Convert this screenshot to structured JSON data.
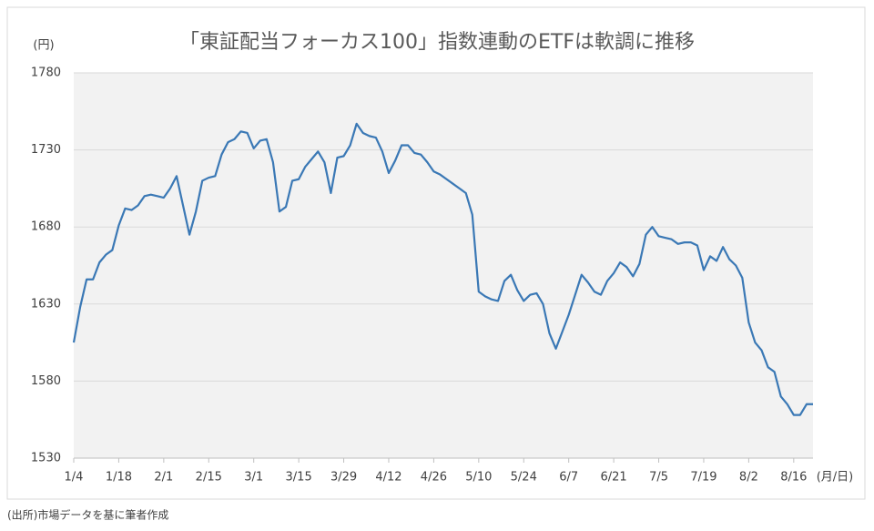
{
  "chart_data": {
    "type": "line",
    "title": "「東証配当フォーカス100」指数連動のETFは軟調に推移",
    "y_unit": "(円)",
    "x_unit": "(月/日)",
    "source": "(出所)市場データを基に筆者作成",
    "categories": [
      "1/4",
      null,
      null,
      null,
      null,
      null,
      null,
      "1/18",
      null,
      null,
      null,
      null,
      null,
      null,
      "2/1",
      null,
      null,
      null,
      null,
      null,
      null,
      "2/15",
      null,
      null,
      null,
      null,
      null,
      null,
      "3/1",
      null,
      null,
      null,
      null,
      null,
      null,
      "3/15",
      null,
      null,
      null,
      null,
      null,
      null,
      "3/29",
      null,
      null,
      null,
      null,
      null,
      null,
      "4/12",
      null,
      null,
      null,
      null,
      null,
      null,
      "4/26",
      null,
      null,
      null,
      null,
      null,
      null,
      "5/10",
      null,
      null,
      null,
      null,
      null,
      null,
      "5/24",
      null,
      null,
      null,
      null,
      null,
      null,
      "6/7",
      null,
      null,
      null,
      null,
      null,
      null,
      "6/21",
      null,
      null,
      null,
      null,
      null,
      null,
      "7/5",
      null,
      null,
      null,
      null,
      null,
      null,
      "7/19",
      null,
      null,
      null,
      null,
      null,
      null,
      "8/2",
      null,
      null,
      null,
      null,
      null,
      null,
      "8/16",
      null,
      null,
      null
    ],
    "series": [
      {
        "color": "#3a78b5",
        "values": [
          1605,
          1628,
          1646,
          1646,
          1657,
          1662,
          1665,
          1681,
          1692,
          1691,
          1694,
          1700,
          1701,
          1700,
          1699,
          1705,
          1713,
          1694,
          1675,
          1690,
          1710,
          1712,
          1713,
          1727,
          1735,
          1737,
          1742,
          1741,
          1731,
          1736,
          1737,
          1722,
          1690,
          1693,
          1710,
          1711,
          1719,
          1724,
          1729,
          1722,
          1702,
          1725,
          1726,
          1733,
          1747,
          1741,
          1739,
          1738,
          1729,
          1715,
          1723,
          1733,
          1733,
          1728,
          1727,
          1722,
          1716,
          1714,
          1711,
          1708,
          1705,
          1702,
          1688,
          1638,
          1635,
          1633,
          1632,
          1645,
          1649,
          1639,
          1632,
          1636,
          1637,
          1630,
          1611,
          1601,
          1612,
          1623,
          1636,
          1649,
          1644,
          1638,
          1636,
          1645,
          1650,
          1657,
          1654,
          1648,
          1656,
          1675,
          1680,
          1674,
          1673,
          1672,
          1669,
          1670,
          1670,
          1668,
          1652,
          1661,
          1658,
          1667,
          1659,
          1655,
          1647,
          1618,
          1605,
          1600,
          1589,
          1586,
          1570,
          1565,
          1558,
          1558,
          1565,
          1565
        ]
      }
    ],
    "ylim": [
      1530,
      1780
    ],
    "yticks": [
      1530,
      1580,
      1630,
      1680,
      1730,
      1780
    ],
    "grid": true
  }
}
